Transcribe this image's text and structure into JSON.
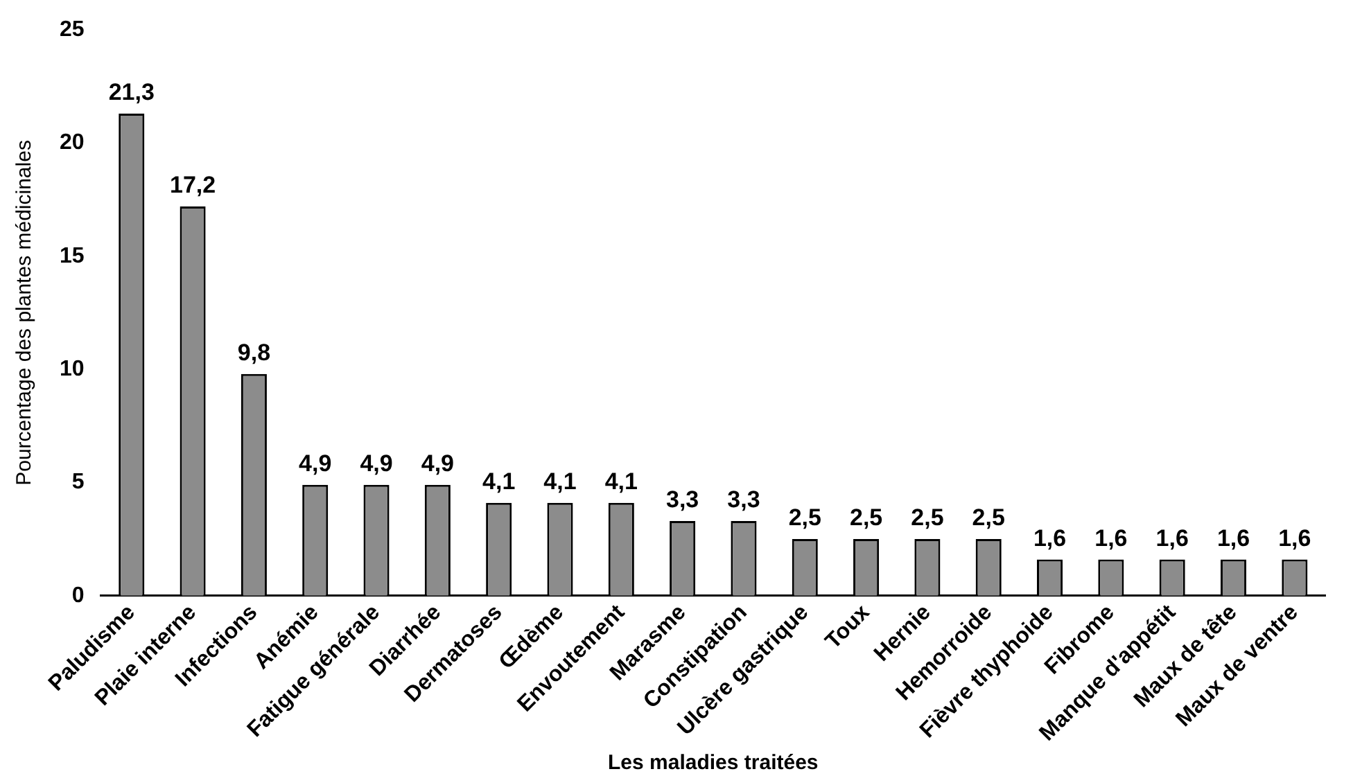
{
  "chart_data": {
    "type": "bar",
    "xlabel": "Les maladies traitées",
    "ylabel": "Pourcentage des plantes médicinales",
    "categories": [
      "Paludisme",
      "Plaie interne",
      "Infections",
      "Anémie",
      "Fatigue générale",
      "Diarrhée",
      "Dermatoses",
      "Œdème",
      "Envoutement",
      "Marasme",
      "Constipation",
      "Ulcère gastrique",
      "Toux",
      "Hernie",
      "Hemorroide",
      "Fièvre thyphoide",
      "Fibrome",
      "Manque d'appétit",
      "Maux de tête",
      "Maux de ventre"
    ],
    "values": [
      21.3,
      17.2,
      9.8,
      4.9,
      4.9,
      4.9,
      4.1,
      4.1,
      4.1,
      3.3,
      3.3,
      2.5,
      2.5,
      2.5,
      2.5,
      1.6,
      1.6,
      1.6,
      1.6,
      1.6
    ],
    "value_labels": [
      "21,3",
      "17,2",
      "9,8",
      "4,9",
      "4,9",
      "4,9",
      "4,1",
      "4,1",
      "4,1",
      "3,3",
      "3,3",
      "2,5",
      "2,5",
      "2,5",
      "2,5",
      "1,6",
      "1,6",
      "1,6",
      "1,6",
      "1,6"
    ],
    "color": "#8c8c8c",
    "ylim": [
      0,
      25
    ],
    "yticks": [
      0,
      5,
      10,
      15,
      20,
      25
    ],
    "grid": false,
    "legend": false
  }
}
